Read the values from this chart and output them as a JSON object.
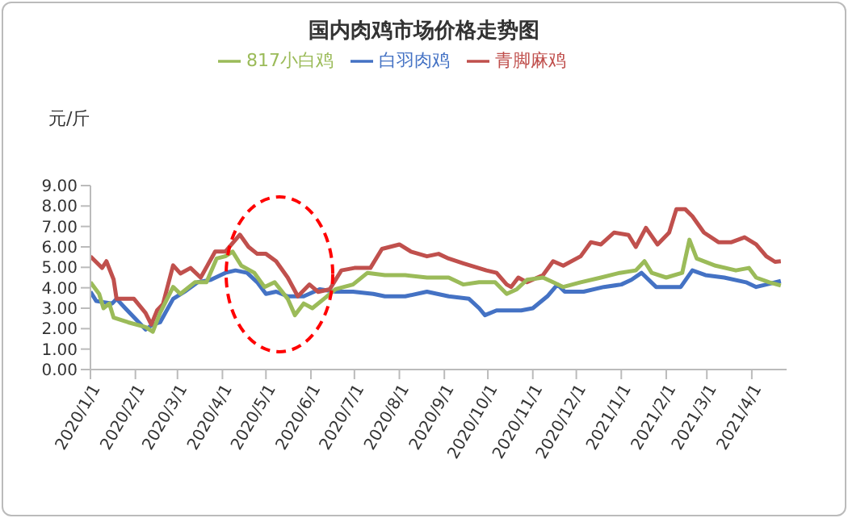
{
  "chart_data": {
    "type": "line",
    "title": "国内肉鸡市场价格走势图",
    "ylabel": "元/斤",
    "legend": "top",
    "grid": false,
    "marker": "none",
    "line_style": "solid",
    "xlim": [
      "2020-01-01",
      "2021-04-25"
    ],
    "xticks": [
      {
        "value": "2020-01-01",
        "label": "2020/1/1"
      },
      {
        "value": "2020-02-01",
        "label": "2020/2/1"
      },
      {
        "value": "2020-03-01",
        "label": "2020/3/1"
      },
      {
        "value": "2020-04-01",
        "label": "2020/4/1"
      },
      {
        "value": "2020-05-01",
        "label": "2020/5/1"
      },
      {
        "value": "2020-06-01",
        "label": "2020/6/1"
      },
      {
        "value": "2020-07-01",
        "label": "2020/7/1"
      },
      {
        "value": "2020-08-01",
        "label": "2020/8/1"
      },
      {
        "value": "2020-09-01",
        "label": "2020/9/1"
      },
      {
        "value": "2020-10-01",
        "label": "2020/10/1"
      },
      {
        "value": "2020-11-01",
        "label": "2020/11/1"
      },
      {
        "value": "2020-12-01",
        "label": "2020/12/1"
      },
      {
        "value": "2021-01-01",
        "label": "2021/1/1"
      },
      {
        "value": "2021-02-01",
        "label": "2021/2/1"
      },
      {
        "value": "2021-03-01",
        "label": "2021/3/1"
      },
      {
        "value": "2021-04-01",
        "label": "2021/4/1"
      }
    ],
    "ylim": [
      0,
      9
    ],
    "yticks": [
      {
        "value": 0,
        "label": "0.00"
      },
      {
        "value": 1,
        "label": "1.00"
      },
      {
        "value": 2,
        "label": "2.00"
      },
      {
        "value": 3,
        "label": "3.00"
      },
      {
        "value": 4,
        "label": "4.00"
      },
      {
        "value": 5,
        "label": "5.00"
      },
      {
        "value": 6,
        "label": "6.00"
      },
      {
        "value": 7,
        "label": "7.00"
      },
      {
        "value": 8,
        "label": "8.00"
      },
      {
        "value": 9,
        "label": "9.00"
      }
    ],
    "series": [
      {
        "name": "白羽肉鸡",
        "color": "#4472c4",
        "x": [
          "2020-01-01",
          "2020-01-05",
          "2020-01-16",
          "2020-01-19",
          "2020-01-25",
          "2020-02-08",
          "2020-02-13",
          "2020-02-18",
          "2020-02-27",
          "2020-03-06",
          "2020-03-15",
          "2020-03-24",
          "2020-04-03",
          "2020-04-10",
          "2020-04-18",
          "2020-04-25",
          "2020-05-01",
          "2020-05-08",
          "2020-05-16",
          "2020-05-27",
          "2020-06-07",
          "2020-06-18",
          "2020-06-30",
          "2020-07-14",
          "2020-07-22",
          "2020-08-05",
          "2020-08-20",
          "2020-09-04",
          "2020-09-18",
          "2020-09-25",
          "2020-09-29",
          "2020-10-07",
          "2020-10-24",
          "2020-11-01",
          "2020-11-11",
          "2020-11-18",
          "2020-11-23",
          "2020-12-06",
          "2020-12-20",
          "2021-01-01",
          "2021-01-08",
          "2021-01-15",
          "2021-01-25",
          "2021-02-11",
          "2021-02-19",
          "2021-02-28",
          "2021-03-13",
          "2021-03-28",
          "2021-04-04",
          "2021-04-11",
          "2021-04-21"
        ],
        "values": [
          3.81,
          3.35,
          3.23,
          3.46,
          3.0,
          1.96,
          2.2,
          2.31,
          3.46,
          3.81,
          4.27,
          4.39,
          4.73,
          4.85,
          4.73,
          4.27,
          3.7,
          3.81,
          3.58,
          3.58,
          3.93,
          3.81,
          3.81,
          3.7,
          3.58,
          3.58,
          3.81,
          3.58,
          3.46,
          3.0,
          2.66,
          2.89,
          2.89,
          3.0,
          3.58,
          4.16,
          3.81,
          3.81,
          4.04,
          4.16,
          4.39,
          4.73,
          4.04,
          4.04,
          4.85,
          4.62,
          4.5,
          4.27,
          4.04,
          4.16,
          4.33
        ]
      },
      {
        "name": "青脚麻鸡",
        "color": "#c0504d",
        "x": [
          "2020-01-01",
          "2020-01-09",
          "2020-01-12",
          "2020-01-17",
          "2020-01-19",
          "2020-01-31",
          "2020-02-08",
          "2020-02-12",
          "2020-02-16",
          "2020-02-20",
          "2020-02-27",
          "2020-03-03",
          "2020-03-10",
          "2020-03-17",
          "2020-03-27",
          "2020-04-03",
          "2020-04-13",
          "2020-04-19",
          "2020-04-25",
          "2020-05-01",
          "2020-05-08",
          "2020-05-16",
          "2020-05-23",
          "2020-05-31",
          "2020-06-06",
          "2020-06-14",
          "2020-06-22",
          "2020-07-01",
          "2020-07-12",
          "2020-07-20",
          "2020-08-01",
          "2020-08-09",
          "2020-08-20",
          "2020-08-28",
          "2020-09-04",
          "2020-09-14",
          "2020-09-30",
          "2020-10-07",
          "2020-10-14",
          "2020-10-17",
          "2020-10-22",
          "2020-10-28",
          "2020-11-08",
          "2020-11-15",
          "2020-11-22",
          "2020-12-04",
          "2020-12-11",
          "2020-12-18",
          "2020-12-27",
          "2021-01-06",
          "2021-01-11",
          "2021-01-18",
          "2021-01-26",
          "2021-02-03",
          "2021-02-08",
          "2021-02-14",
          "2021-02-19",
          "2021-02-27",
          "2021-03-09",
          "2021-03-18",
          "2021-03-27",
          "2021-04-04",
          "2021-04-11",
          "2021-04-17",
          "2021-04-21"
        ],
        "values": [
          5.54,
          4.97,
          5.3,
          4.4,
          3.46,
          3.46,
          2.77,
          2.2,
          2.9,
          3.2,
          5.1,
          4.7,
          4.97,
          4.5,
          5.77,
          5.77,
          6.6,
          6.0,
          5.66,
          5.66,
          5.3,
          4.5,
          3.58,
          4.16,
          3.8,
          3.93,
          4.85,
          4.97,
          4.97,
          5.9,
          6.12,
          5.77,
          5.54,
          5.66,
          5.43,
          5.2,
          4.85,
          4.73,
          4.16,
          4.04,
          4.5,
          4.27,
          4.62,
          5.3,
          5.08,
          5.54,
          6.23,
          6.12,
          6.7,
          6.58,
          6.0,
          6.93,
          6.12,
          6.7,
          7.85,
          7.85,
          7.5,
          6.7,
          6.23,
          6.23,
          6.47,
          6.12,
          5.54,
          5.27,
          5.3
        ]
      },
      {
        "name": "817小白鸡",
        "color": "#9bbb59",
        "x": [
          "2020-01-01",
          "2020-01-07",
          "2020-01-10",
          "2020-01-14",
          "2020-01-17",
          "2020-01-27",
          "2020-02-08",
          "2020-02-13",
          "2020-02-18",
          "2020-02-27",
          "2020-03-03",
          "2020-03-13",
          "2020-03-21",
          "2020-03-28",
          "2020-04-03",
          "2020-04-08",
          "2020-04-14",
          "2020-04-23",
          "2020-04-30",
          "2020-05-07",
          "2020-05-16",
          "2020-05-21",
          "2020-05-27",
          "2020-06-02",
          "2020-06-10",
          "2020-06-18",
          "2020-06-30",
          "2020-07-10",
          "2020-07-22",
          "2020-08-05",
          "2020-08-20",
          "2020-09-04",
          "2020-09-14",
          "2020-09-25",
          "2020-10-06",
          "2020-10-14",
          "2020-10-21",
          "2020-10-28",
          "2020-11-08",
          "2020-11-15",
          "2020-11-22",
          "2020-12-04",
          "2020-12-18",
          "2020-12-31",
          "2021-01-11",
          "2021-01-17",
          "2021-01-22",
          "2021-02-01",
          "2021-02-12",
          "2021-02-17",
          "2021-02-22",
          "2021-03-07",
          "2021-03-21",
          "2021-03-30",
          "2021-04-04",
          "2021-04-13",
          "2021-04-21"
        ],
        "values": [
          4.27,
          3.7,
          3.0,
          3.23,
          2.54,
          2.31,
          2.08,
          1.85,
          2.77,
          4.04,
          3.7,
          4.27,
          4.27,
          5.43,
          5.54,
          5.77,
          5.08,
          4.73,
          4.04,
          4.27,
          3.46,
          2.66,
          3.23,
          3.0,
          3.46,
          3.93,
          4.16,
          4.73,
          4.62,
          4.62,
          4.5,
          4.5,
          4.16,
          4.27,
          4.27,
          3.7,
          3.93,
          4.39,
          4.5,
          4.27,
          4.04,
          4.27,
          4.5,
          4.73,
          4.85,
          5.3,
          4.73,
          4.5,
          4.73,
          6.35,
          5.43,
          5.08,
          4.85,
          4.97,
          4.5,
          4.27,
          4.11
        ]
      }
    ]
  }
}
